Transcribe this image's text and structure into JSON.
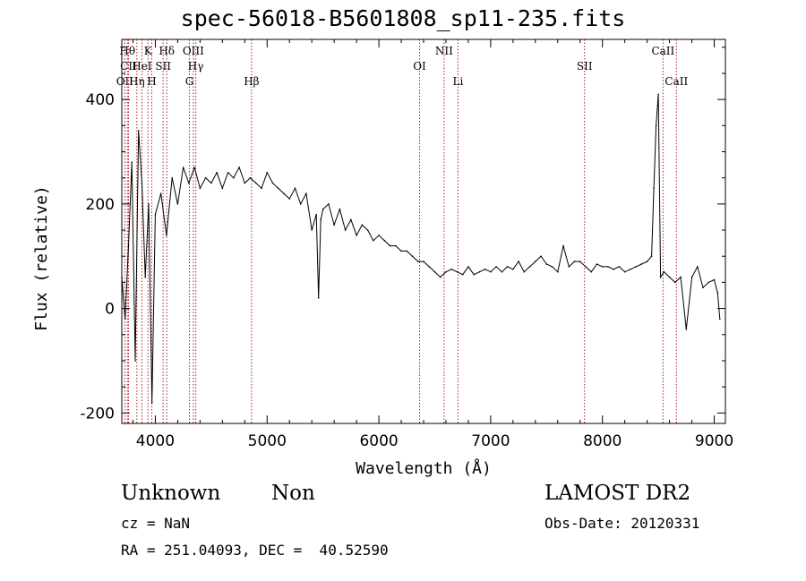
{
  "header": {
    "title": "spec-56018-B5601808_sp11-235.fits"
  },
  "info": {
    "class": "Unknown",
    "subclass": "Non",
    "survey": "LAMOST DR2",
    "cz": "cz = NaN",
    "obs_date": "Obs-Date: 20120331",
    "radec": "RA = 251.04093, DEC =  40.52590"
  },
  "chart_data": {
    "type": "line",
    "title": "spec-56018-B5601808_sp11-235.fits",
    "xlabel": "Wavelength (Å)",
    "ylabel": "Flux (relative)",
    "xlim": [
      3700,
      9100
    ],
    "ylim": [
      -220,
      515
    ],
    "x_ticks": [
      4000,
      5000,
      6000,
      7000,
      8000,
      9000
    ],
    "y_ticks": [
      -200,
      0,
      200,
      400
    ],
    "line_color": "#000000",
    "marker_line_color": "#b22222",
    "series": [
      {
        "wavelength": [
          3700,
          3730,
          3760,
          3790,
          3820,
          3850,
          3880,
          3910,
          3940,
          3970,
          4000,
          4050,
          4100,
          4150,
          4200,
          4250,
          4300,
          4350,
          4400,
          4450,
          4500,
          4550,
          4600,
          4650,
          4700,
          4750,
          4800,
          4850,
          4900,
          4950,
          5000,
          5050,
          5100,
          5150,
          5200,
          5250,
          5300,
          5350,
          5400,
          5440,
          5460,
          5480,
          5500,
          5550,
          5600,
          5650,
          5700,
          5750,
          5800,
          5850,
          5900,
          5950,
          6000,
          6050,
          6100,
          6150,
          6200,
          6250,
          6300,
          6350,
          6400,
          6450,
          6500,
          6550,
          6600,
          6650,
          6700,
          6750,
          6800,
          6850,
          6900,
          6950,
          7000,
          7050,
          7100,
          7150,
          7200,
          7250,
          7300,
          7350,
          7400,
          7450,
          7500,
          7550,
          7600,
          7650,
          7700,
          7750,
          7800,
          7850,
          7900,
          7950,
          8000,
          8050,
          8100,
          8150,
          8200,
          8250,
          8300,
          8350,
          8400,
          8440,
          8460,
          8480,
          8500,
          8520,
          8550,
          8600,
          8650,
          8700,
          8750,
          8800,
          8850,
          8900,
          8950,
          9000,
          9030,
          9050
        ],
        "flux": [
          60,
          -20,
          120,
          280,
          -100,
          340,
          240,
          60,
          200,
          -180,
          180,
          220,
          140,
          250,
          200,
          270,
          240,
          270,
          230,
          250,
          240,
          260,
          230,
          260,
          250,
          270,
          240,
          250,
          240,
          230,
          260,
          240,
          230,
          220,
          210,
          230,
          200,
          220,
          150,
          180,
          20,
          170,
          190,
          200,
          160,
          190,
          150,
          170,
          140,
          160,
          150,
          130,
          140,
          130,
          120,
          120,
          110,
          110,
          100,
          90,
          90,
          80,
          70,
          60,
          70,
          75,
          70,
          65,
          80,
          65,
          70,
          75,
          70,
          80,
          70,
          80,
          75,
          90,
          70,
          80,
          90,
          100,
          85,
          80,
          70,
          120,
          80,
          90,
          90,
          80,
          70,
          85,
          80,
          80,
          75,
          80,
          70,
          75,
          80,
          85,
          90,
          100,
          230,
          350,
          410,
          60,
          70,
          60,
          50,
          60,
          -40,
          60,
          80,
          40,
          50,
          55,
          30,
          -20
        ]
      }
    ],
    "lines": [
      {
        "name": "OII",
        "wave": 3727,
        "row": 3
      },
      {
        "name": "Hθ",
        "wave": 3750,
        "row": 1
      },
      {
        "name": "CII",
        "wave": 3760,
        "row": 2
      },
      {
        "name": "Hη",
        "wave": 3835,
        "row": 3
      },
      {
        "name": "HeI",
        "wave": 3880,
        "row": 2
      },
      {
        "name": "K",
        "wave": 3934,
        "row": 1
      },
      {
        "name": "H",
        "wave": 3968,
        "row": 3
      },
      {
        "name": "SII",
        "wave": 4070,
        "row": 2
      },
      {
        "name": "Hδ",
        "wave": 4102,
        "row": 1
      },
      {
        "name": "G",
        "wave": 4305,
        "row": 3
      },
      {
        "name": "OIII",
        "wave": 4340,
        "row": 1
      },
      {
        "name": "Hγ",
        "wave": 4362,
        "row": 2
      },
      {
        "name": "Hβ",
        "wave": 4861,
        "row": 3
      },
      {
        "name": "OI",
        "wave": 6364,
        "row": 2
      },
      {
        "name": "NII",
        "wave": 6583,
        "row": 1
      },
      {
        "name": "Li",
        "wave": 6708,
        "row": 3
      },
      {
        "name": "SII",
        "wave": 7840,
        "row": 2
      },
      {
        "name": "CaII",
        "wave": 8542,
        "row": 1
      },
      {
        "name": "CaII",
        "wave": 8662,
        "row": 3
      }
    ]
  }
}
